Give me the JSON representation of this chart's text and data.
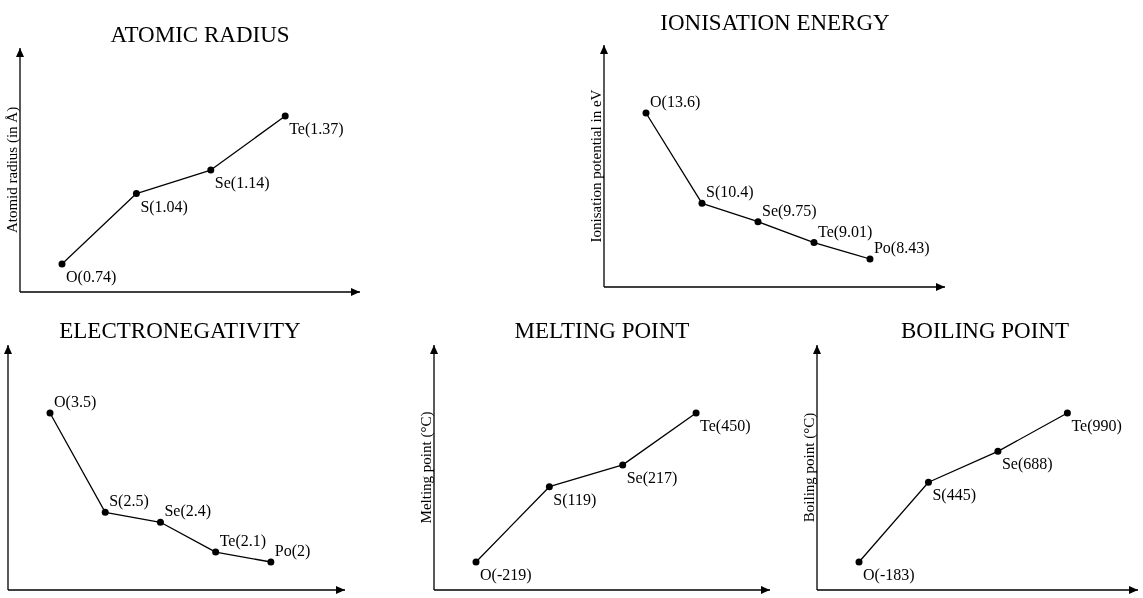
{
  "chart_data": [
    {
      "type": "line",
      "title": "ATOMIC RADIUS",
      "ylabel": "Atomid radius (in Å)",
      "categories": [
        null,
        null,
        null,
        null
      ],
      "values": [
        0.74,
        1.04,
        1.14,
        1.37
      ],
      "value_labels": [
        "O(0.74)",
        "S(1.04)",
        "Se(1.14)",
        "Te(1.37)"
      ],
      "color": "#000000",
      "marker": "circle"
    },
    {
      "type": "line",
      "title": "IONISATION ENERGY",
      "ylabel": "Ionisation potential in eV",
      "categories": [
        null,
        null,
        null,
        null,
        null
      ],
      "values": [
        13.6,
        10.4,
        9.75,
        9.01,
        8.43
      ],
      "value_labels": [
        "O(13.6)",
        "S(10.4)",
        "Se(9.75)",
        "Te(9.01)",
        "Po(8.43)"
      ],
      "color": "#000000",
      "marker": "circle"
    },
    {
      "type": "line",
      "title": "ELECTRONEGATIVITY",
      "categories": [
        null,
        null,
        null,
        null,
        null
      ],
      "values": [
        3.5,
        2.5,
        2.4,
        2.1,
        2
      ],
      "value_labels": [
        "O(3.5)",
        "S(2.5)",
        "Se(2.4)",
        "Te(2.1)",
        "Po(2)"
      ],
      "color": "#000000",
      "marker": "circle"
    },
    {
      "type": "line",
      "title": "MELTING POINT",
      "ylabel": "Melting point (°C)",
      "categories": [
        null,
        null,
        null,
        null
      ],
      "values": [
        -219,
        119,
        217,
        450
      ],
      "value_labels": [
        "O(-219)",
        "S(119)",
        "Se(217)",
        "Te(450)"
      ],
      "color": "#000000",
      "marker": "circle"
    },
    {
      "type": "line",
      "title": "BOILING POINT",
      "ylabel": "Boiling point (°C)",
      "categories": [
        null,
        null,
        null,
        null
      ],
      "values": [
        -183,
        445,
        688,
        990
      ],
      "value_labels": [
        "O(-183)",
        "S(445)",
        "Se(688)",
        "Te(990)"
      ],
      "color": "#000000",
      "marker": "circle"
    }
  ]
}
